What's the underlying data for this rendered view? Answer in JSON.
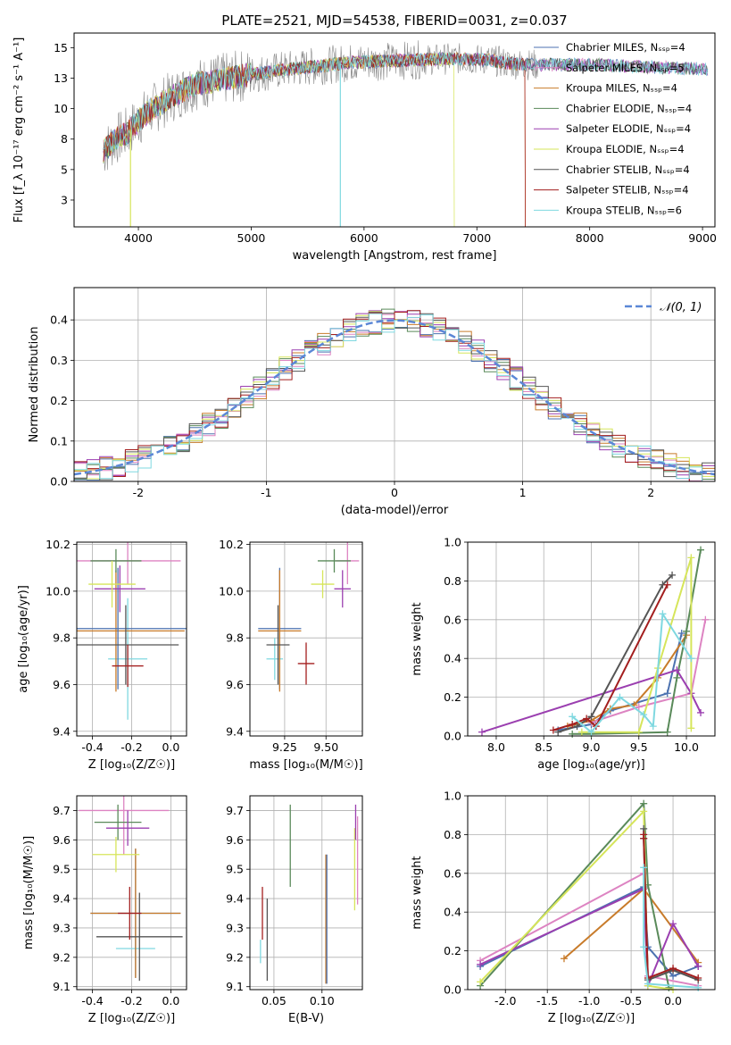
{
  "chart_data": [
    {
      "id": "spectrum",
      "type": "line",
      "title": "PLATE=2521, MJD=54538, FIBERID=0031, z=0.037",
      "xlabel": "wavelength [Angstrom, rest frame]",
      "ylabel": "Flux [f_λ 10⁻¹⁷ erg cm⁻² s⁻¹ A⁻¹]",
      "xlim": [
        3430,
        9110
      ],
      "ylim": [
        0.3,
        16.2
      ],
      "xticks": [
        4000,
        5000,
        6000,
        7000,
        8000,
        9000
      ],
      "yticks": [
        2.5,
        5.0,
        7.5,
        10.0,
        12.5,
        15.0
      ],
      "grid": false,
      "legend_position": "top-right",
      "data_envelope": {
        "x": [
          3690,
          3800,
          3900,
          4000,
          4100,
          4300,
          4500,
          4800,
          5000,
          5300,
          5600,
          5900,
          6200,
          6500,
          6800,
          7100,
          7300,
          7500,
          7800,
          8000,
          8300,
          8600,
          8900,
          9050
        ],
        "y": [
          6.5,
          7.5,
          8.0,
          9.0,
          9.8,
          11.0,
          12.0,
          12.5,
          12.8,
          13.2,
          13.5,
          13.8,
          13.9,
          14.0,
          14.1,
          14.0,
          13.7,
          13.6,
          13.6,
          13.6,
          13.5,
          13.4,
          13.3,
          13.2
        ]
      },
      "series": [
        {
          "name": "Chabrier MILES, N_SSP=4",
          "color": "#4c72b0"
        },
        {
          "name": "Salpeter MILES, N_SSP=5",
          "color": "#dd84c2"
        },
        {
          "name": "Kroupa MILES, N_SSP=4",
          "color": "#c87b2a"
        },
        {
          "name": "Chabrier ELODIE, N_SSP=4",
          "color": "#5a8a5a"
        },
        {
          "name": "Salpeter ELODIE, N_SSP=4",
          "color": "#9b3fb0"
        },
        {
          "name": "Kroupa ELODIE, N_SSP=4",
          "color": "#d6e55a"
        },
        {
          "name": "Chabrier STELIB, N_SSP=4",
          "color": "#555555"
        },
        {
          "name": "Salpeter STELIB, N_SSP=4",
          "color": "#a31e1e"
        },
        {
          "name": "Kroupa STELIB, N_SSP=6",
          "color": "#7fd8e0"
        }
      ]
    },
    {
      "id": "residuals",
      "type": "line",
      "xlabel": "(data-model)/error",
      "ylabel": "Normed distribution",
      "xlim": [
        -2.5,
        2.5
      ],
      "ylim": [
        0,
        0.48
      ],
      "xticks": [
        -2,
        -1,
        0,
        1,
        2
      ],
      "yticks": [
        0.0,
        0.1,
        0.2,
        0.3,
        0.4
      ],
      "grid": true,
      "legend_position": "top-right",
      "gaussian_label": "𝒩(0, 1)",
      "gaussian_color": "#5b87d6"
    },
    {
      "id": "age-vs-z",
      "type": "scatter",
      "xlabel": "Z [log₁₀(Z/Z☉)]",
      "ylabel": "age  [log₁₀(age/yr)]",
      "xlim": [
        -0.48,
        0.08
      ],
      "ylim": [
        9.38,
        10.21
      ],
      "xticks": [
        -0.4,
        -0.2,
        0.0
      ],
      "yticks": [
        9.4,
        9.6,
        9.8,
        10.0,
        10.2
      ],
      "grid": true,
      "points": [
        {
          "x": -0.22,
          "y": 9.71,
          "xerr": 0.1,
          "yerr": 0.26,
          "color": "#7fd8e0"
        },
        {
          "x": -0.28,
          "y": 9.83,
          "xerr": 0.35,
          "yerr": 0.26,
          "color": "#c87b2a"
        },
        {
          "x": -0.27,
          "y": 9.84,
          "xerr": 0.35,
          "yerr": 0.26,
          "color": "#4c72b0"
        },
        {
          "x": -0.23,
          "y": 9.77,
          "xerr": 0.27,
          "yerr": 0.17,
          "color": "#555555"
        },
        {
          "x": -0.22,
          "y": 9.68,
          "xerr": 0.08,
          "yerr": 0.09,
          "color": "#a31e1e"
        },
        {
          "x": -0.22,
          "y": 10.13,
          "xerr": 0.27,
          "yerr": 0.1,
          "color": "#dd84c2"
        },
        {
          "x": -0.28,
          "y": 10.13,
          "xerr": 0.13,
          "yerr": 0.05,
          "color": "#5a8a5a"
        },
        {
          "x": -0.26,
          "y": 10.01,
          "xerr": 0.13,
          "yerr": 0.1,
          "color": "#9b3fb0"
        },
        {
          "x": -0.3,
          "y": 10.03,
          "xerr": 0.12,
          "yerr": 0.1,
          "color": "#d6e55a"
        }
      ]
    },
    {
      "id": "age-vs-mass",
      "type": "scatter",
      "xlabel": "mass [log₁₀(M/M☉)]",
      "ylabel": "",
      "xlim": [
        9.04,
        9.72
      ],
      "ylim": [
        9.38,
        10.21
      ],
      "xticks": [
        9.25,
        9.5
      ],
      "yticks": [
        9.4,
        9.6,
        9.8,
        10.0,
        10.2
      ],
      "grid": true,
      "points": [
        {
          "x": 9.19,
          "y": 9.71,
          "xerr": 0.05,
          "yerr": 0.09,
          "color": "#7fd8e0"
        },
        {
          "x": 9.22,
          "y": 9.84,
          "xerr": 0.13,
          "yerr": 0.26,
          "color": "#4c72b0"
        },
        {
          "x": 9.22,
          "y": 9.83,
          "xerr": 0.13,
          "yerr": 0.26,
          "color": "#c87b2a"
        },
        {
          "x": 9.21,
          "y": 9.77,
          "xerr": 0.07,
          "yerr": 0.17,
          "color": "#555555"
        },
        {
          "x": 9.38,
          "y": 9.69,
          "xerr": 0.05,
          "yerr": 0.09,
          "color": "#a31e1e"
        },
        {
          "x": 9.63,
          "y": 10.13,
          "xerr": 0.07,
          "yerr": 0.1,
          "color": "#dd84c2"
        },
        {
          "x": 9.55,
          "y": 10.13,
          "xerr": 0.1,
          "yerr": 0.05,
          "color": "#5a8a5a"
        },
        {
          "x": 9.6,
          "y": 10.01,
          "xerr": 0.05,
          "yerr": 0.08,
          "color": "#9b3fb0"
        },
        {
          "x": 9.48,
          "y": 10.03,
          "xerr": 0.07,
          "yerr": 0.06,
          "color": "#d6e55a"
        }
      ]
    },
    {
      "id": "massweight-vs-age",
      "type": "line",
      "xlabel": "age  [log₁₀(age/yr)]",
      "ylabel": "mass weight",
      "xlim": [
        7.7,
        10.3
      ],
      "ylim": [
        0.0,
        1.0
      ],
      "xticks": [
        8.0,
        8.5,
        9.0,
        9.5,
        10.0
      ],
      "yticks": [
        0.0,
        0.2,
        0.4,
        0.6,
        0.8,
        1.0
      ],
      "grid": true,
      "series": [
        {
          "color": "#4c72b0",
          "x": [
            8.65,
            9.0,
            9.2,
            9.8,
            9.95
          ],
          "y": [
            0.03,
            0.06,
            0.13,
            0.22,
            0.53
          ]
        },
        {
          "color": "#dd84c2",
          "x": [
            9.0,
            9.5,
            10.05,
            10.2
          ],
          "y": [
            0.07,
            0.15,
            0.22,
            0.6
          ]
        },
        {
          "color": "#c87b2a",
          "x": [
            8.75,
            9.0,
            9.2,
            9.45,
            9.7,
            10.0
          ],
          "y": [
            0.05,
            0.08,
            0.14,
            0.16,
            0.3,
            0.52
          ]
        },
        {
          "color": "#5a8a5a",
          "x": [
            8.8,
            9.0,
            9.8,
            9.9,
            10.0,
            10.15
          ],
          "y": [
            0.01,
            0.01,
            0.02,
            0.3,
            0.54,
            0.96
          ]
        },
        {
          "color": "#9b3fb0",
          "x": [
            7.85,
            9.9,
            10.05,
            10.15
          ],
          "y": [
            0.02,
            0.34,
            0.22,
            0.12
          ]
        },
        {
          "color": "#d6e55a",
          "x": [
            8.9,
            9.5,
            9.7,
            10.05,
            10.05
          ],
          "y": [
            0.02,
            0.02,
            0.35,
            0.92,
            0.04
          ]
        },
        {
          "color": "#555555",
          "x": [
            8.65,
            8.85,
            9.0,
            9.75,
            9.85
          ],
          "y": [
            0.02,
            0.05,
            0.1,
            0.78,
            0.83
          ]
        },
        {
          "color": "#a31e1e",
          "x": [
            8.6,
            8.8,
            8.95,
            9.05,
            9.8
          ],
          "y": [
            0.03,
            0.06,
            0.09,
            0.05,
            0.78
          ]
        },
        {
          "color": "#7fd8e0",
          "x": [
            8.8,
            9.0,
            9.3,
            9.55,
            9.65,
            9.75,
            10.05
          ],
          "y": [
            0.1,
            0.02,
            0.2,
            0.11,
            0.05,
            0.63,
            0.4
          ]
        }
      ]
    },
    {
      "id": "mass-vs-z",
      "type": "scatter",
      "xlabel": "Z [log₁₀(Z/Z☉)]",
      "ylabel": "mass [log₁₀(M/M☉)]",
      "xlim": [
        -0.48,
        0.08
      ],
      "ylim": [
        9.09,
        9.75
      ],
      "xticks": [
        -0.4,
        -0.2,
        0.0
      ],
      "yticks": [
        9.1,
        9.2,
        9.3,
        9.4,
        9.5,
        9.6,
        9.7
      ],
      "grid": true,
      "points": [
        {
          "x": -0.18,
          "y": 9.23,
          "xerr": 0.1,
          "yerr": 0.04,
          "color": "#7fd8e0"
        },
        {
          "x": -0.18,
          "y": 9.35,
          "xerr": 0.23,
          "yerr": 0.22,
          "color": "#4c72b0"
        },
        {
          "x": -0.18,
          "y": 9.35,
          "xerr": 0.23,
          "yerr": 0.22,
          "color": "#c87b2a"
        },
        {
          "x": -0.16,
          "y": 9.27,
          "xerr": 0.22,
          "yerr": 0.15,
          "color": "#555555"
        },
        {
          "x": -0.21,
          "y": 9.35,
          "xerr": 0.06,
          "yerr": 0.09,
          "color": "#a31e1e"
        },
        {
          "x": -0.24,
          "y": 9.7,
          "xerr": 0.23,
          "yerr": 0.15,
          "color": "#dd84c2"
        },
        {
          "x": -0.27,
          "y": 9.66,
          "xerr": 0.12,
          "yerr": 0.06,
          "color": "#5a8a5a"
        },
        {
          "x": -0.22,
          "y": 9.64,
          "xerr": 0.11,
          "yerr": 0.06,
          "color": "#9b3fb0"
        },
        {
          "x": -0.28,
          "y": 9.55,
          "xerr": 0.12,
          "yerr": 0.06,
          "color": "#d6e55a"
        }
      ]
    },
    {
      "id": "mass-vs-ebv",
      "type": "scatter",
      "xlabel": "E(B-V)",
      "ylabel": "",
      "xlim": [
        0.025,
        0.142
      ],
      "ylim": [
        9.09,
        9.75
      ],
      "xticks": [
        0.05,
        0.1
      ],
      "yticks": [
        9.1,
        9.2,
        9.3,
        9.4,
        9.5,
        9.6,
        9.7
      ],
      "grid": true,
      "points": [
        {
          "x": 0.036,
          "y": 9.22,
          "yerr": 0.04,
          "color": "#7fd8e0"
        },
        {
          "x": 0.038,
          "y": 9.35,
          "yerr": 0.09,
          "color": "#a31e1e"
        },
        {
          "x": 0.043,
          "y": 9.26,
          "yerr": 0.14,
          "color": "#555555"
        },
        {
          "x": 0.067,
          "y": 9.58,
          "yerr": 0.14,
          "color": "#5a8a5a"
        },
        {
          "x": 0.104,
          "y": 9.33,
          "yerr": 0.22,
          "color": "#c87b2a"
        },
        {
          "x": 0.105,
          "y": 9.33,
          "yerr": 0.22,
          "color": "#4c72b0"
        },
        {
          "x": 0.134,
          "y": 9.5,
          "yerr": 0.14,
          "color": "#d6e55a"
        },
        {
          "x": 0.135,
          "y": 9.66,
          "yerr": 0.06,
          "color": "#9b3fb0"
        },
        {
          "x": 0.137,
          "y": 9.53,
          "yerr": 0.15,
          "color": "#dd84c2"
        }
      ]
    },
    {
      "id": "massweight-vs-z",
      "type": "line",
      "xlabel": "Z [log₁₀(Z/Z☉)]",
      "ylabel": "mass weight",
      "xlim": [
        -2.45,
        0.5
      ],
      "ylim": [
        0.0,
        1.0
      ],
      "xticks": [
        -2.0,
        -1.5,
        -1.0,
        -0.5,
        0.0
      ],
      "yticks": [
        0.0,
        0.2,
        0.4,
        0.6,
        0.8,
        1.0
      ],
      "grid": true,
      "series": [
        {
          "color": "#4c72b0",
          "x": [
            -2.3,
            -0.35,
            -0.3,
            0.0,
            0.3
          ],
          "y": [
            0.12,
            0.53,
            0.22,
            0.07,
            0.12
          ]
        },
        {
          "color": "#dd84c2",
          "x": [
            -2.3,
            -0.35,
            -0.3,
            0.3
          ],
          "y": [
            0.15,
            0.6,
            0.07,
            0.02
          ]
        },
        {
          "color": "#c87b2a",
          "x": [
            -1.3,
            -0.35,
            0.3
          ],
          "y": [
            0.16,
            0.52,
            0.14
          ]
        },
        {
          "color": "#5a8a5a",
          "x": [
            -2.3,
            -0.35,
            -0.3,
            -0.05
          ],
          "y": [
            0.02,
            0.96,
            0.54,
            0.01
          ]
        },
        {
          "color": "#9b3fb0",
          "x": [
            -2.3,
            -0.35,
            -0.3,
            0.0,
            0.3
          ],
          "y": [
            0.13,
            0.52,
            0.02,
            0.34,
            0.12
          ]
        },
        {
          "color": "#d6e55a",
          "x": [
            -2.3,
            -0.35,
            -0.3,
            0.0
          ],
          "y": [
            0.04,
            0.92,
            0.02,
            0.0
          ]
        },
        {
          "color": "#555555",
          "x": [
            -0.35,
            -0.35,
            -0.3,
            0.0,
            0.3
          ],
          "y": [
            0.83,
            0.78,
            0.05,
            0.1,
            0.05
          ]
        },
        {
          "color": "#a31e1e",
          "x": [
            -0.35,
            -0.35,
            -0.3,
            0.0,
            0.3
          ],
          "y": [
            0.8,
            0.78,
            0.06,
            0.11,
            0.06
          ]
        },
        {
          "color": "#7fd8e0",
          "x": [
            -0.35,
            -0.35,
            -0.3,
            0.3
          ],
          "y": [
            0.63,
            0.22,
            0.03,
            0.01
          ]
        }
      ]
    }
  ]
}
